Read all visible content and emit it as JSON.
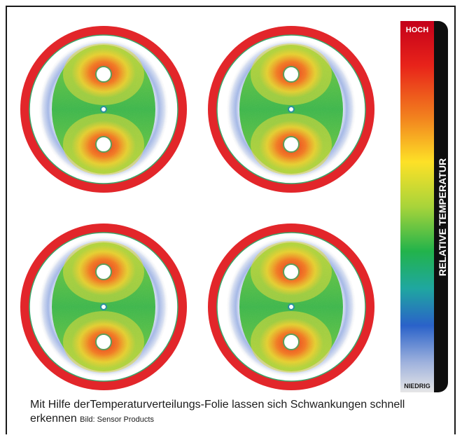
{
  "legend": {
    "high_label": "HOCH",
    "low_label": "NIEDRIG",
    "axis_label": "RELATIVE TEMPERATUR",
    "colors": [
      "#c4001a",
      "#e8231a",
      "#f2821e",
      "#fde127",
      "#a8d43a",
      "#22b34b",
      "#1fa7a0",
      "#2a62c9",
      "#9fb2dd",
      "#d6d6d6"
    ]
  },
  "caption": {
    "text": "Mit Hilfe derTemperaturverteilungs-Folie lassen sich Schwankungen schnell erkennen",
    "credit": "Bild: Sensor Products"
  }
}
